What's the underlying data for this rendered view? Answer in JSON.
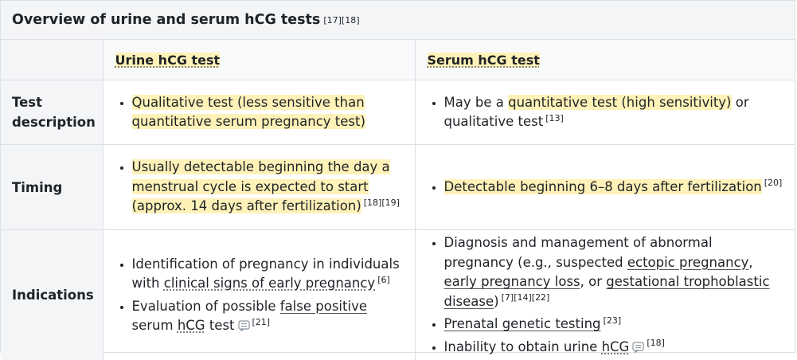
{
  "caption": {
    "title": "Overview of urine and serum hCG tests",
    "refs": "[17][18]"
  },
  "columns": {
    "urine": "Urine hCG test",
    "serum": "Serum hCG test"
  },
  "rows": {
    "test_description": {
      "label": "Test description",
      "urine": {
        "hl": "Qualitative test (less sensitive than quantitative serum pregnancy test)"
      },
      "serum": {
        "pre": "May be a ",
        "hl": "quantitative test (high sensitivity)",
        "post": " or qualitative test",
        "ref": "[13]"
      }
    },
    "timing": {
      "label": "Timing",
      "urine": {
        "hl": "Usually detectable beginning the day a menstrual cycle is expected to start (approx. 14 days after fertilization)",
        "ref": "[18][19]"
      },
      "serum": {
        "hl": "Detectable beginning 6–8 days after fertilization",
        "ref": "[20]"
      }
    },
    "indications": {
      "label": "Indications",
      "urine": [
        {
          "pre": "Identification of pregnancy in individuals with ",
          "link": "clinical signs of early pregnancy",
          "ref": "[6]"
        },
        {
          "pre": "Evaluation of possible ",
          "link": "false positive",
          "mid": " serum ",
          "link2": "hCG",
          "post": " test",
          "ref": "[21]"
        }
      ],
      "serum": [
        {
          "pre": "Diagnosis and management of abnormal pregnancy (e.g., suspected ",
          "link": "ectopic pregnancy",
          "mid": ", ",
          "link2": "early pregnancy loss",
          "mid2": ", or ",
          "link3": "gestational trophoblastic disease",
          "post": ")",
          "ref": "[7][14][22]"
        },
        {
          "link": "Prenatal genetic testing",
          "ref": "[23]"
        },
        {
          "pre": "Inability to obtain urine ",
          "link": "hCG",
          "ref": "[18]"
        }
      ]
    }
  }
}
